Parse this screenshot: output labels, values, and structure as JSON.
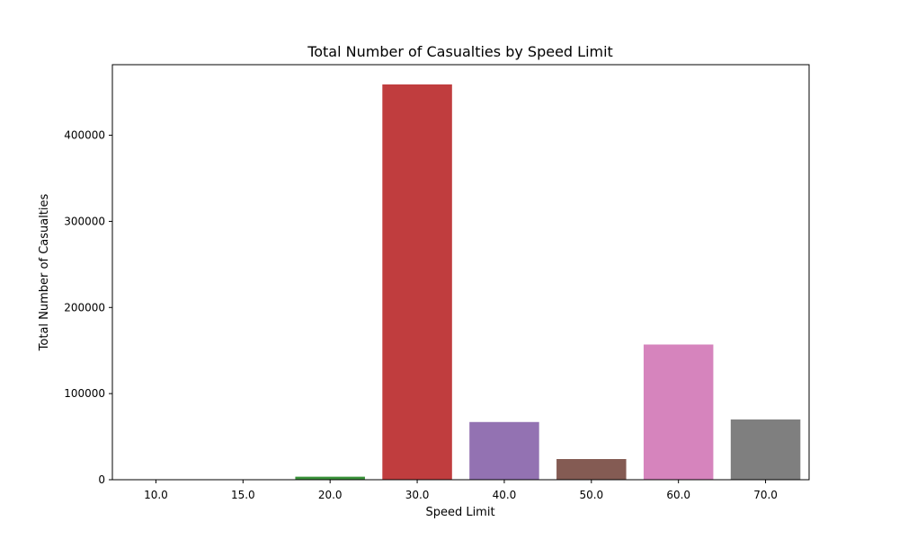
{
  "chart_data": {
    "type": "bar",
    "title": "Total Number of Casualties by Speed Limit",
    "xlabel": "Speed Limit",
    "ylabel": "Total Number of Casualties",
    "categories": [
      "10.0",
      "15.0",
      "20.0",
      "30.0",
      "40.0",
      "50.0",
      "60.0",
      "70.0"
    ],
    "values": [
      40,
      80,
      3500,
      459000,
      67000,
      24000,
      157000,
      70000
    ],
    "colors": [
      "#3b75af",
      "#ef8636",
      "#3a923a",
      "#c03d3e",
      "#9372b2",
      "#845b53",
      "#d684bd",
      "#7f7f7f"
    ],
    "ylim": [
      0,
      481950
    ],
    "yticks": [
      0,
      100000,
      200000,
      300000,
      400000
    ],
    "ytick_labels": [
      "0",
      "100000",
      "200000",
      "300000",
      "400000"
    ],
    "grid": false,
    "legend": "none"
  }
}
